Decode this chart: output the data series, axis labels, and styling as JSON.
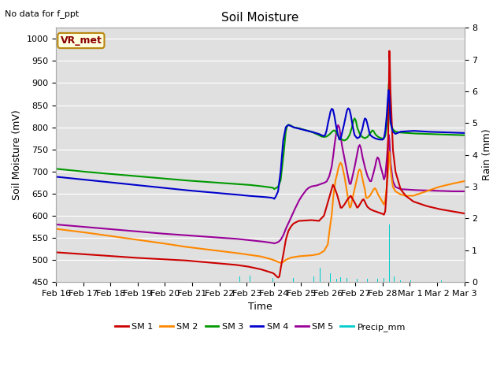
{
  "title": "Soil Moisture",
  "subtitle": "No data for f_ppt",
  "ylabel_left": "Soil Moisture (mV)",
  "ylabel_right": "Rain (mm)",
  "xlabel": "Time",
  "legend_label": "VR_met",
  "ylim_left": [
    450,
    1025
  ],
  "ylim_right": [
    0.0,
    8.0
  ],
  "yticks_left": [
    450,
    500,
    550,
    600,
    650,
    700,
    750,
    800,
    850,
    900,
    950,
    1000
  ],
  "yticks_right": [
    0.0,
    1.0,
    2.0,
    3.0,
    4.0,
    5.0,
    6.0,
    7.0,
    8.0
  ],
  "xtick_labels": [
    "Feb 16",
    "Feb 17",
    "Feb 18",
    "Feb 19",
    "Feb 20",
    "Feb 21",
    "Feb 22",
    "Feb 23",
    "Feb 24",
    "Feb 25",
    "Feb 26",
    "Feb 27",
    "Feb 28",
    "Mar 1",
    "Mar 2",
    "Mar 3"
  ],
  "n_days": 16,
  "colors": {
    "SM1": "#cc0000",
    "SM2": "#ff8800",
    "SM3": "#009900",
    "SM4": "#0000cc",
    "SM5": "#990099",
    "Precip": "#00cccc",
    "background": "#e0e0e0",
    "grid": "#ffffff"
  },
  "legend_entries": [
    "SM 1",
    "SM 2",
    "SM 3",
    "SM 4",
    "SM 5",
    "Precip_mm"
  ]
}
